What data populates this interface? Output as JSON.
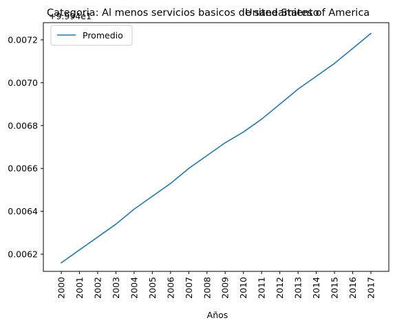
{
  "title_left": "Categoria: Al menos servicios basicos de saneamiento",
  "title_right": "United States of America",
  "offset_text": "+9.994e1",
  "chart_data": {
    "type": "line",
    "title": "Categoria: Al menos servicios basicos de saneamiento",
    "xlabel": "Años",
    "ylabel": "",
    "x": [
      "2000",
      "2001",
      "2002",
      "2003",
      "2004",
      "2005",
      "2006",
      "2007",
      "2008",
      "2009",
      "2010",
      "2011",
      "2012",
      "2013",
      "2014",
      "2015",
      "2016",
      "2017"
    ],
    "y_offset": 99.94,
    "series": [
      {
        "name": "Promedio",
        "color": "#1f77b4",
        "values": [
          0.00616,
          0.00622,
          0.00628,
          0.00634,
          0.00641,
          0.00647,
          0.00653,
          0.0066,
          0.00666,
          0.00672,
          0.00677,
          0.00683,
          0.0069,
          0.00697,
          0.00703,
          0.00709,
          0.00716,
          0.00723
        ]
      }
    ],
    "yticks": [
      0.0062,
      0.0064,
      0.0066,
      0.0068,
      0.007,
      0.0072
    ],
    "ytick_labels": [
      "0.0062",
      "0.0064",
      "0.0066",
      "0.0068",
      "0.0070",
      "0.0072"
    ],
    "ylim": [
      0.00612,
      0.00728
    ],
    "grid": false,
    "legend": "upper left"
  }
}
